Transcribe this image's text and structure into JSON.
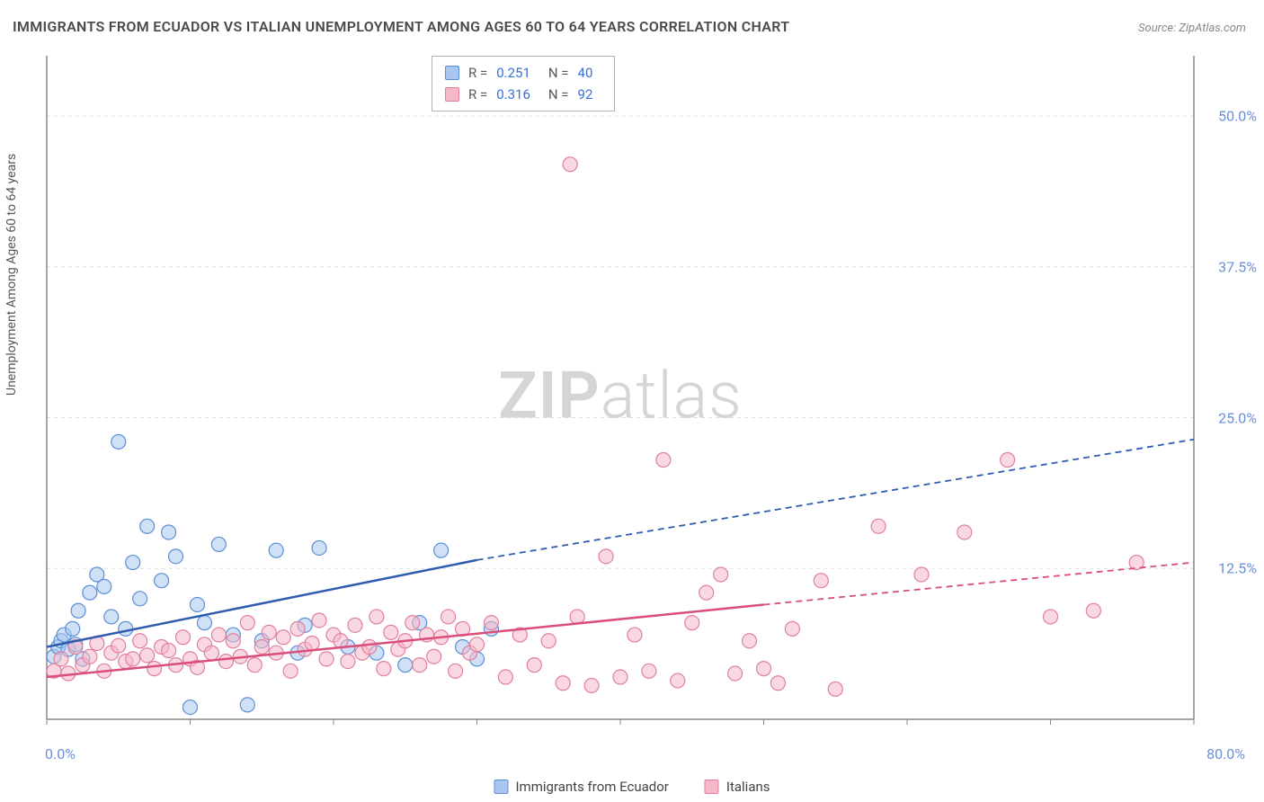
{
  "title": "IMMIGRANTS FROM ECUADOR VS ITALIAN UNEMPLOYMENT AMONG AGES 60 TO 64 YEARS CORRELATION CHART",
  "source": "Source: ZipAtlas.com",
  "y_axis_label": "Unemployment Among Ages 60 to 64 years",
  "watermark_bold": "ZIP",
  "watermark_light": "atlas",
  "chart": {
    "type": "scatter",
    "xlim": [
      0,
      80
    ],
    "ylim": [
      0,
      55
    ],
    "y_ticks": [
      12.5,
      25.0,
      37.5,
      50.0
    ],
    "y_tick_labels": [
      "12.5%",
      "25.0%",
      "37.5%",
      "50.0%"
    ],
    "x_origin_label": "0.0%",
    "x_max_label": "80.0%",
    "x_tick_step": 10,
    "background_color": "#ffffff",
    "grid_color": "#dddddd",
    "axis_color": "#888888",
    "label_color": "#6a8fd8",
    "marker_radius": 8,
    "marker_opacity": 0.55,
    "series": [
      {
        "name": "Immigrants from Ecuador",
        "fill": "#a8c6f0",
        "stroke": "#5b8fd6",
        "line_color": "#2e5db0",
        "R": "0.251",
        "N": "40",
        "trend": {
          "x1": 0,
          "y1": 6.0,
          "x2_solid": 30,
          "y2_solid": 13.2,
          "x2_dash": 80,
          "y2_dash": 23.2
        },
        "points": [
          [
            0.5,
            5.2
          ],
          [
            0.8,
            6.0
          ],
          [
            1.0,
            6.5
          ],
          [
            1.2,
            7.0
          ],
          [
            1.5,
            5.8
          ],
          [
            1.8,
            7.5
          ],
          [
            2.0,
            6.2
          ],
          [
            2.2,
            9.0
          ],
          [
            2.5,
            5.0
          ],
          [
            3.0,
            10.5
          ],
          [
            3.5,
            12.0
          ],
          [
            4.0,
            11.0
          ],
          [
            4.5,
            8.5
          ],
          [
            5.0,
            23.0
          ],
          [
            5.5,
            7.5
          ],
          [
            6.0,
            13.0
          ],
          [
            6.5,
            10.0
          ],
          [
            7.0,
            16.0
          ],
          [
            8.0,
            11.5
          ],
          [
            8.5,
            15.5
          ],
          [
            9.0,
            13.5
          ],
          [
            10.0,
            1.0
          ],
          [
            10.5,
            9.5
          ],
          [
            11.0,
            8.0
          ],
          [
            12.0,
            14.5
          ],
          [
            13.0,
            7.0
          ],
          [
            14.0,
            1.2
          ],
          [
            15.0,
            6.5
          ],
          [
            16.0,
            14.0
          ],
          [
            17.5,
            5.5
          ],
          [
            18.0,
            7.8
          ],
          [
            19.0,
            14.2
          ],
          [
            21.0,
            6.0
          ],
          [
            23.0,
            5.5
          ],
          [
            25.0,
            4.5
          ],
          [
            26.0,
            8.0
          ],
          [
            27.5,
            14.0
          ],
          [
            29.0,
            6.0
          ],
          [
            30.0,
            5.0
          ],
          [
            31.0,
            7.5
          ]
        ]
      },
      {
        "name": "Italians",
        "fill": "#f5b8c9",
        "stroke": "#e07fa0",
        "line_color": "#d94f7a",
        "R": "0.316",
        "N": "92",
        "trend": {
          "x1": 0,
          "y1": 3.5,
          "x2_solid": 50,
          "y2_solid": 9.5,
          "x2_dash": 80,
          "y2_dash": 13.0
        },
        "points": [
          [
            0.5,
            4.0
          ],
          [
            1.0,
            5.0
          ],
          [
            1.5,
            3.8
          ],
          [
            2.0,
            6.0
          ],
          [
            2.5,
            4.5
          ],
          [
            3.0,
            5.2
          ],
          [
            3.5,
            6.3
          ],
          [
            4.0,
            4.0
          ],
          [
            4.5,
            5.5
          ],
          [
            5.0,
            6.1
          ],
          [
            5.5,
            4.8
          ],
          [
            6.0,
            5.0
          ],
          [
            6.5,
            6.5
          ],
          [
            7.0,
            5.3
          ],
          [
            7.5,
            4.2
          ],
          [
            8.0,
            6.0
          ],
          [
            8.5,
            5.7
          ],
          [
            9.0,
            4.5
          ],
          [
            9.5,
            6.8
          ],
          [
            10.0,
            5.0
          ],
          [
            10.5,
            4.3
          ],
          [
            11.0,
            6.2
          ],
          [
            11.5,
            5.5
          ],
          [
            12.0,
            7.0
          ],
          [
            12.5,
            4.8
          ],
          [
            13.0,
            6.5
          ],
          [
            13.5,
            5.2
          ],
          [
            14.0,
            8.0
          ],
          [
            14.5,
            4.5
          ],
          [
            15.0,
            6.0
          ],
          [
            15.5,
            7.2
          ],
          [
            16.0,
            5.5
          ],
          [
            16.5,
            6.8
          ],
          [
            17.0,
            4.0
          ],
          [
            17.5,
            7.5
          ],
          [
            18.0,
            5.8
          ],
          [
            18.5,
            6.3
          ],
          [
            19.0,
            8.2
          ],
          [
            19.5,
            5.0
          ],
          [
            20.0,
            7.0
          ],
          [
            20.5,
            6.5
          ],
          [
            21.0,
            4.8
          ],
          [
            21.5,
            7.8
          ],
          [
            22.0,
            5.5
          ],
          [
            22.5,
            6.0
          ],
          [
            23.0,
            8.5
          ],
          [
            23.5,
            4.2
          ],
          [
            24.0,
            7.2
          ],
          [
            24.5,
            5.8
          ],
          [
            25.0,
            6.5
          ],
          [
            25.5,
            8.0
          ],
          [
            26.0,
            4.5
          ],
          [
            26.5,
            7.0
          ],
          [
            27.0,
            5.2
          ],
          [
            27.5,
            6.8
          ],
          [
            28.0,
            8.5
          ],
          [
            28.5,
            4.0
          ],
          [
            29.0,
            7.5
          ],
          [
            29.5,
            5.5
          ],
          [
            30.0,
            6.2
          ],
          [
            31.0,
            8.0
          ],
          [
            32.0,
            3.5
          ],
          [
            33.0,
            7.0
          ],
          [
            34.0,
            4.5
          ],
          [
            35.0,
            6.5
          ],
          [
            36.0,
            3.0
          ],
          [
            37.0,
            8.5
          ],
          [
            38.0,
            2.8
          ],
          [
            39.0,
            13.5
          ],
          [
            40.0,
            3.5
          ],
          [
            41.0,
            7.0
          ],
          [
            42.0,
            4.0
          ],
          [
            43.0,
            21.5
          ],
          [
            44.0,
            3.2
          ],
          [
            45.0,
            8.0
          ],
          [
            46.0,
            10.5
          ],
          [
            47.0,
            12.0
          ],
          [
            48.0,
            3.8
          ],
          [
            49.0,
            6.5
          ],
          [
            50.0,
            4.2
          ],
          [
            51.0,
            3.0
          ],
          [
            52.0,
            7.5
          ],
          [
            36.5,
            46.0
          ],
          [
            54.0,
            11.5
          ],
          [
            55.0,
            2.5
          ],
          [
            58.0,
            16.0
          ],
          [
            61.0,
            12.0
          ],
          [
            64.0,
            15.5
          ],
          [
            67.0,
            21.5
          ],
          [
            70.0,
            8.5
          ],
          [
            73.0,
            9.0
          ],
          [
            76.0,
            13.0
          ]
        ]
      }
    ]
  },
  "stats_box": {
    "r_label": "R =",
    "n_label": "N ="
  },
  "x_legend": [
    {
      "label": "Immigrants from Ecuador",
      "fill": "#a8c6f0",
      "stroke": "#5b8fd6"
    },
    {
      "label": "Italians",
      "fill": "#f5b8c9",
      "stroke": "#e07fa0"
    }
  ]
}
